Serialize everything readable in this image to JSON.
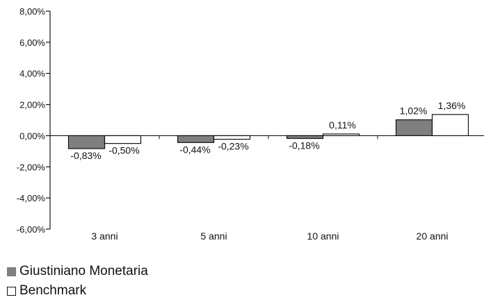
{
  "chart_data": {
    "type": "bar",
    "categories": [
      "3 anni",
      "5 anni",
      "10 anni",
      "20 anni"
    ],
    "series": [
      {
        "name": "Giustiniano Monetaria",
        "values": [
          -0.83,
          -0.44,
          -0.18,
          1.02
        ],
        "labels": [
          "-0,83%",
          "-0,44%",
          "-0,18%",
          "1,02%"
        ],
        "color": "#7f7f7f"
      },
      {
        "name": "Benchmark",
        "values": [
          -0.5,
          -0.23,
          0.11,
          1.36
        ],
        "labels": [
          "-0,50%",
          "-0,23%",
          "0,11%",
          "1,36%"
        ],
        "color": "#ffffff"
      }
    ],
    "ylim": [
      -6,
      8
    ],
    "yticks": [
      -6,
      -4,
      -2,
      0,
      2,
      4,
      6,
      8
    ],
    "ytick_labels": [
      "-6,00%",
      "-4,00%",
      "-2,00%",
      "0,00%",
      "2,00%",
      "4,00%",
      "6,00%",
      "8,00%"
    ],
    "title": "",
    "xlabel": "",
    "ylabel": "",
    "grid": false,
    "legend_position": "bottom-left"
  }
}
